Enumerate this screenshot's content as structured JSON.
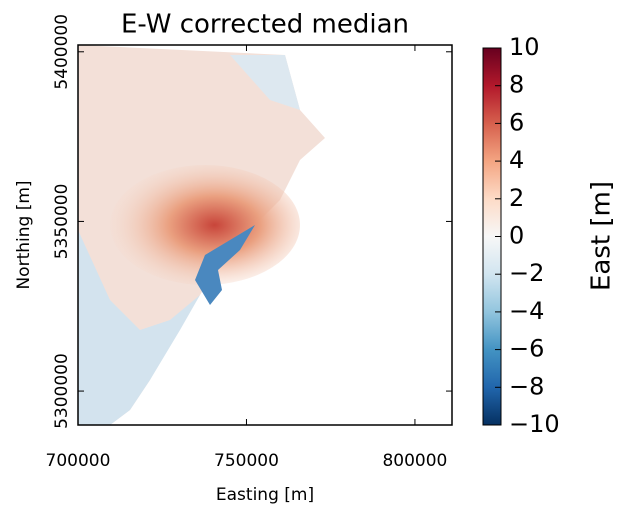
{
  "chart_data": {
    "type": "image",
    "title": "E-W corrected median",
    "x_label": "Easting [m]",
    "y_label": "Northing [m]",
    "xlim": [
      700000,
      811000
    ],
    "ylim": [
      5290000,
      5402000
    ],
    "xticks": [
      700000,
      750000,
      800000
    ],
    "yticks": [
      5300000,
      5350000,
      5400000
    ],
    "colorbar": {
      "label": "East [m]",
      "clim": [
        -10,
        10
      ],
      "ticks": [
        10,
        8,
        6,
        4,
        2,
        0,
        {
          "value": -2,
          "label": "−2"
        },
        {
          "value": -4,
          "label": "−4"
        },
        {
          "value": -6,
          "label": "−6"
        },
        {
          "value": -8,
          "label": "−8"
        },
        {
          "value": -10,
          "label": "−10"
        }
      ]
    }
  }
}
